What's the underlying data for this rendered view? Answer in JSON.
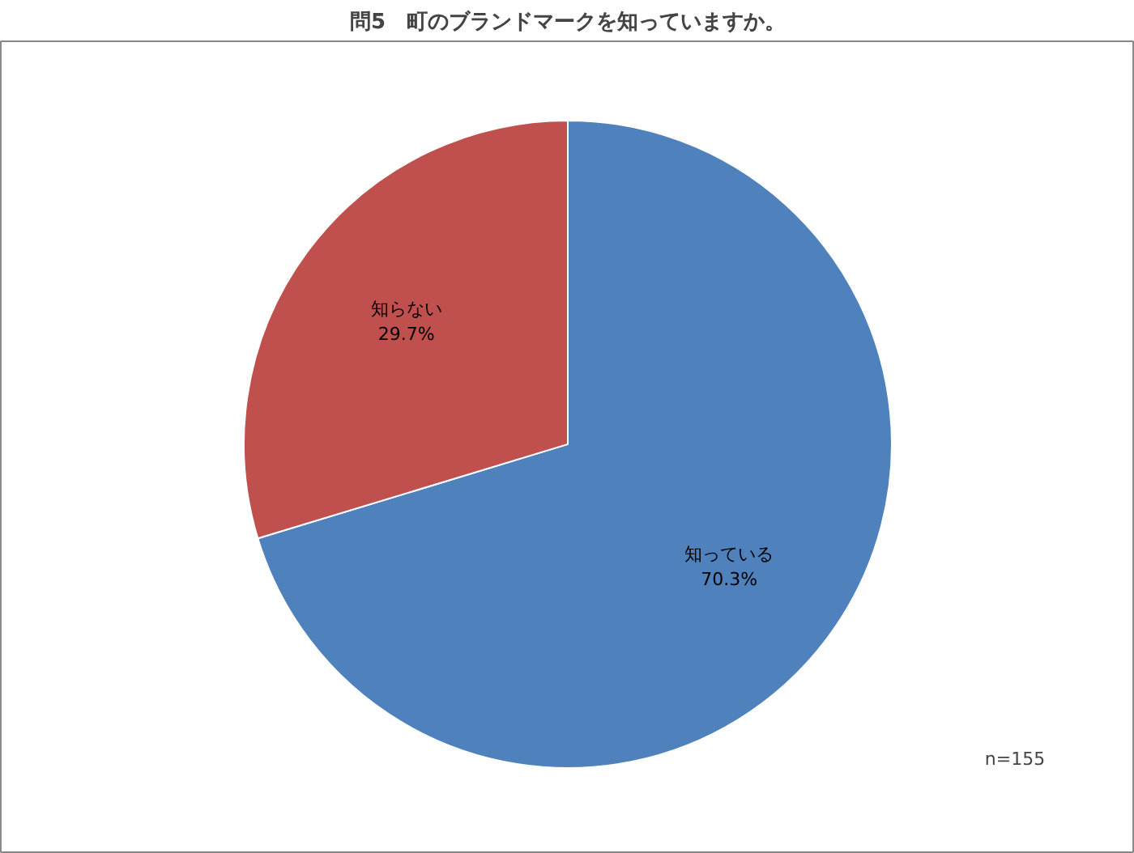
{
  "chart_data": {
    "type": "pie",
    "title": "問5　町のブランドマークを知っていますか。",
    "categories": [
      "知っている",
      "知らない"
    ],
    "values": [
      70.3,
      29.7
    ],
    "colors": [
      "#4f81bd",
      "#c0504d"
    ],
    "value_labels": [
      "70.3%",
      "29.7%"
    ],
    "annotations": [
      "n=155"
    ]
  }
}
